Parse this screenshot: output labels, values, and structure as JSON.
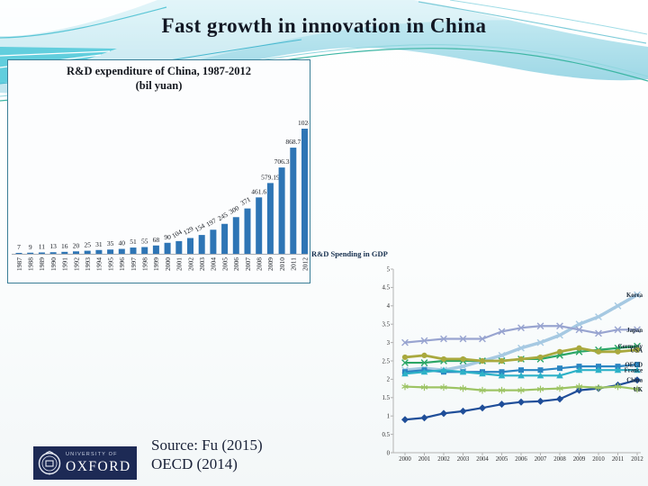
{
  "slide": {
    "title": "Fast growth in innovation in China"
  },
  "colors": {
    "bar_blue": "#2e75b5",
    "box_border": "#3a7e96",
    "axis_gray": "#a6adb5",
    "wave_teal": "#52c9d9",
    "logo_navy": "#1d2a55"
  },
  "chart_data": [
    {
      "type": "bar",
      "title": "R&D expenditure of China, 1987-2012",
      "subtitle": "(bil yuan)",
      "categories": [
        "1987",
        "1988",
        "1989",
        "1990",
        "1991",
        "1992",
        "1993",
        "1994",
        "1995",
        "1996",
        "1997",
        "1998",
        "1999",
        "2000",
        "2001",
        "2002",
        "2003",
        "2004",
        "2005",
        "2006",
        "2007",
        "2008",
        "2009",
        "2010",
        "2011",
        "2012"
      ],
      "values": [
        7,
        9,
        11,
        13,
        16,
        20,
        25,
        31,
        35,
        40,
        51,
        55,
        68,
        90,
        104,
        129,
        154,
        197,
        245,
        300,
        371,
        461.6,
        579.19,
        706.3,
        868.7,
        1024
      ],
      "bar_color": "#2e75b5",
      "xlabel": "",
      "ylabel": "",
      "ylim": [
        0,
        1100
      ],
      "grid": false,
      "legend_position": "none"
    },
    {
      "type": "line",
      "title": "R&D Spending in GDP",
      "x": [
        2000,
        2001,
        2002,
        2003,
        2004,
        2005,
        2006,
        2007,
        2008,
        2009,
        2010,
        2011,
        2012
      ],
      "xlabel": "",
      "ylabel": "",
      "ylim": [
        0,
        5
      ],
      "ytick_step": 0.5,
      "grid": false,
      "legend_position": "right-edge-labels",
      "series": [
        {
          "name": "Korea",
          "color": "#a6c9e2",
          "marker": "x",
          "line_width": 3.5,
          "values": [
            2.25,
            2.3,
            2.25,
            2.35,
            2.5,
            2.65,
            2.85,
            3.0,
            3.2,
            3.5,
            3.7,
            4.0,
            4.3
          ]
        },
        {
          "name": "Japan",
          "color": "#98a4d0",
          "marker": "x",
          "line_width": 2.2,
          "values": [
            3.0,
            3.05,
            3.1,
            3.1,
            3.1,
            3.3,
            3.4,
            3.45,
            3.45,
            3.35,
            3.25,
            3.35,
            3.35
          ]
        },
        {
          "name": "Germany",
          "color": "#2ba666",
          "marker": "x",
          "line_width": 2.2,
          "values": [
            2.45,
            2.45,
            2.5,
            2.5,
            2.5,
            2.5,
            2.55,
            2.55,
            2.65,
            2.75,
            2.8,
            2.85,
            2.9
          ]
        },
        {
          "name": "USA",
          "color": "#a9a93e",
          "marker": "circle",
          "line_width": 2.8,
          "values": [
            2.6,
            2.65,
            2.55,
            2.55,
            2.5,
            2.5,
            2.55,
            2.6,
            2.75,
            2.85,
            2.75,
            2.75,
            2.8
          ]
        },
        {
          "name": "OECD",
          "color": "#2a85c2",
          "marker": "square",
          "line_width": 2.2,
          "values": [
            2.2,
            2.25,
            2.2,
            2.2,
            2.2,
            2.2,
            2.25,
            2.25,
            2.3,
            2.35,
            2.35,
            2.35,
            2.4
          ]
        },
        {
          "name": "France",
          "color": "#2db1c7",
          "marker": "triangle",
          "line_width": 2.2,
          "values": [
            2.15,
            2.2,
            2.25,
            2.2,
            2.15,
            2.1,
            2.1,
            2.1,
            2.1,
            2.25,
            2.25,
            2.25,
            2.25
          ]
        },
        {
          "name": "China",
          "color": "#1f4e99",
          "marker": "diamond",
          "line_width": 2.2,
          "values": [
            0.9,
            0.95,
            1.07,
            1.13,
            1.22,
            1.32,
            1.38,
            1.4,
            1.46,
            1.7,
            1.75,
            1.84,
            1.98
          ]
        },
        {
          "name": "UK",
          "color": "#9dc464",
          "marker": "asterisk",
          "line_width": 2.2,
          "values": [
            1.8,
            1.78,
            1.78,
            1.75,
            1.7,
            1.7,
            1.7,
            1.73,
            1.75,
            1.8,
            1.77,
            1.8,
            1.73
          ]
        }
      ]
    }
  ],
  "footer": {
    "source_line1": "Source: Fu (2015)",
    "source_line2": "OECD (2014)",
    "logo": {
      "org_line1": "UNIVERSITY OF",
      "org_line2": "OXFORD"
    }
  }
}
